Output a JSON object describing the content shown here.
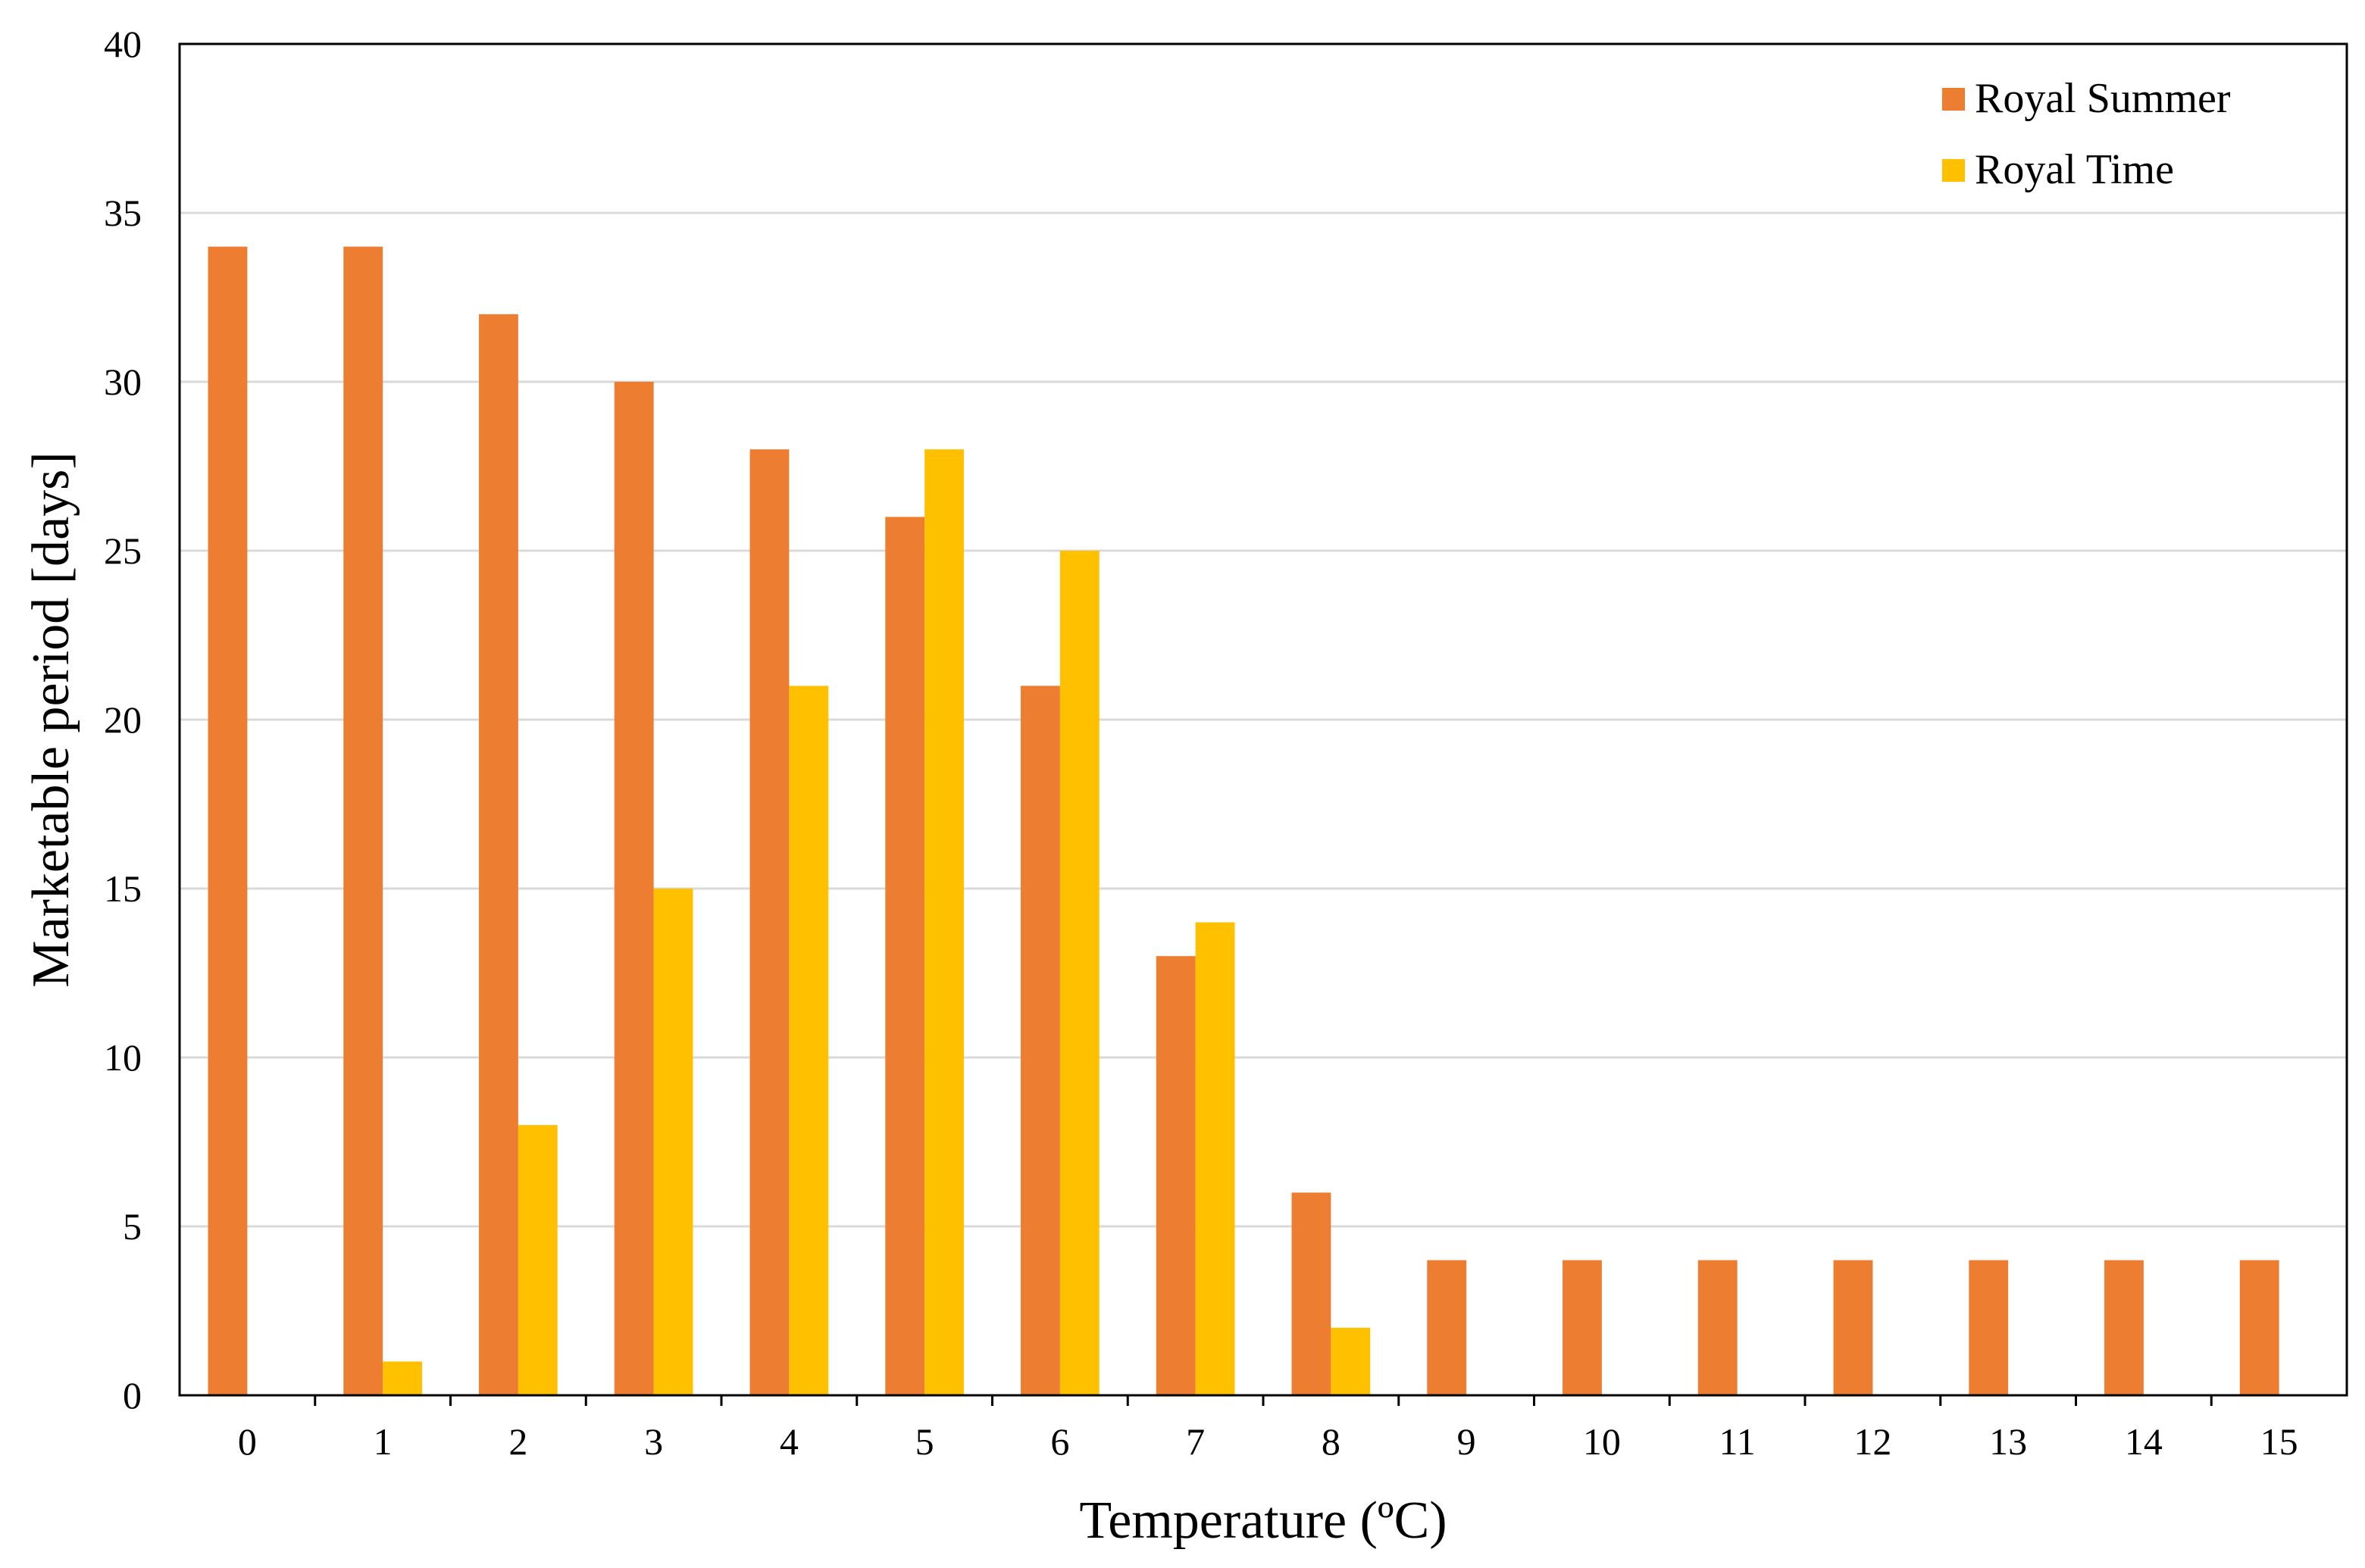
{
  "chart_data": {
    "type": "bar",
    "title": "",
    "xlabel": "Temperature (ºC)",
    "ylabel": "Marketable period [days]",
    "categories": [
      "0",
      "1",
      "2",
      "3",
      "4",
      "5",
      "6",
      "7",
      "8",
      "9",
      "10",
      "11",
      "12",
      "13",
      "14",
      "15"
    ],
    "ylim": [
      0,
      40
    ],
    "yticks": [
      "0",
      "5",
      "10",
      "15",
      "20",
      "25",
      "30",
      "35",
      "40"
    ],
    "grid": true,
    "legend_position": "top-right",
    "series": [
      {
        "name": "Royal Summer",
        "color": "#ED7D31",
        "values": [
          34,
          34,
          32,
          30,
          28,
          26,
          21,
          13,
          6,
          4,
          4,
          4,
          4,
          4,
          4,
          4
        ]
      },
      {
        "name": "Royal Time",
        "color": "#FFC000",
        "values": [
          0,
          1,
          8,
          15,
          21,
          28,
          25,
          14,
          2,
          0,
          0,
          0,
          0,
          0,
          0,
          0
        ]
      }
    ]
  }
}
